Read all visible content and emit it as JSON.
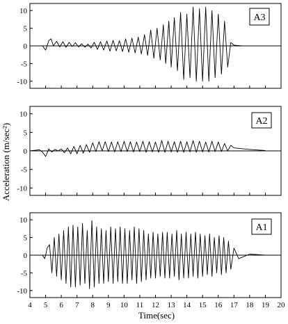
{
  "chart_data": [
    {
      "type": "line",
      "panel_label": "A3",
      "xlim": [
        4,
        20
      ],
      "ylim": [
        -12,
        12
      ],
      "x_ticks": [
        4,
        5,
        6,
        7,
        8,
        9,
        10,
        11,
        12,
        13,
        14,
        15,
        16,
        17,
        18,
        19,
        20
      ],
      "y_ticks": [
        10,
        5,
        0,
        -5,
        -10
      ],
      "series": [
        {
          "x": [
            4.0,
            4.8,
            5.0,
            5.2,
            5.35,
            5.5,
            5.7,
            5.9,
            6.1,
            6.3,
            6.5,
            6.7,
            6.9,
            7.1,
            7.3,
            7.5,
            7.7,
            7.9,
            8.1,
            8.3,
            8.5,
            8.7,
            8.9,
            9.1,
            9.3,
            9.5,
            9.7,
            9.9,
            10.1,
            10.3,
            10.5,
            10.7,
            10.9,
            11.1,
            11.3,
            11.5,
            11.7,
            11.9,
            12.1,
            12.3,
            12.5,
            12.65,
            12.85,
            13.0,
            13.2,
            13.4,
            13.6,
            13.8,
            14.0,
            14.2,
            14.4,
            14.6,
            14.8,
            15.0,
            15.2,
            15.4,
            15.6,
            15.8,
            16.0,
            16.2,
            16.4,
            16.6,
            16.8,
            17.0,
            17.5,
            18.0,
            19.0,
            20.0
          ],
          "values": [
            0,
            0,
            -1.2,
            1.5,
            2,
            0,
            1.3,
            -0.3,
            1.2,
            -0.4,
            1,
            -0.2,
            0.9,
            -0.3,
            0.6,
            -0.4,
            0.5,
            -0.6,
            1,
            -1,
            1.2,
            -1.2,
            1.4,
            -1.5,
            1.6,
            -1.4,
            1.5,
            -1.6,
            2,
            -1.8,
            2.2,
            -2,
            2.5,
            -2.3,
            3.2,
            -2.7,
            4.5,
            -3.5,
            5,
            -4,
            6,
            -5,
            7,
            -6,
            8,
            -7,
            9.5,
            -9.5,
            9,
            -9,
            11,
            -10,
            10.5,
            -10,
            11,
            -10,
            10,
            -9,
            9,
            -8,
            7,
            -6,
            1,
            0.2,
            0,
            0,
            0,
            0
          ]
        }
      ]
    },
    {
      "type": "line",
      "panel_label": "A2",
      "xlim": [
        4,
        20
      ],
      "ylim": [
        -12,
        12
      ],
      "x_ticks": [
        4,
        5,
        6,
        7,
        8,
        9,
        10,
        11,
        12,
        13,
        14,
        15,
        16,
        17,
        18,
        19,
        20
      ],
      "y_ticks": [
        10,
        5,
        0,
        -5,
        -10
      ],
      "series": [
        {
          "x": [
            4.0,
            4.6,
            4.8,
            5.0,
            5.2,
            5.4,
            5.6,
            5.8,
            6.0,
            6.2,
            6.4,
            6.6,
            6.8,
            7.0,
            7.2,
            7.4,
            7.6,
            7.8,
            8.0,
            8.2,
            8.4,
            8.6,
            8.8,
            9.0,
            9.2,
            9.4,
            9.6,
            9.8,
            10.0,
            10.2,
            10.4,
            10.6,
            10.8,
            11.0,
            11.2,
            11.4,
            11.6,
            11.8,
            12.0,
            12.2,
            12.4,
            12.6,
            12.8,
            13.0,
            13.2,
            13.4,
            13.6,
            13.8,
            14.0,
            14.2,
            14.4,
            14.6,
            14.8,
            15.0,
            15.2,
            15.4,
            15.6,
            15.8,
            16.0,
            16.2,
            16.4,
            16.6,
            16.8,
            17.0,
            17.5,
            18.0,
            19.0,
            20.0
          ],
          "values": [
            0,
            0.3,
            -0.3,
            -1.5,
            0.5,
            -0.3,
            0.4,
            0,
            0.5,
            -0.5,
            0.8,
            -0.8,
            1.2,
            -0.8,
            1.5,
            -0.6,
            1.7,
            -0.4,
            2.2,
            -0.2,
            2.5,
            0,
            2.5,
            -0.2,
            2.4,
            -0.3,
            2.5,
            -0.2,
            2.6,
            -0.2,
            2.5,
            -0.3,
            2.4,
            -0.2,
            2.6,
            -0.4,
            2.5,
            -0.3,
            2.4,
            -0.4,
            2.8,
            -0.4,
            2.6,
            -0.3,
            2.5,
            -0.4,
            2.6,
            -0.4,
            2.5,
            -0.3,
            2.8,
            -0.4,
            2.6,
            -0.3,
            2.4,
            -0.3,
            2.6,
            -0.2,
            2.4,
            -0.2,
            2,
            0,
            1.5,
            0.8,
            0.6,
            0.4,
            0.1,
            0
          ]
        }
      ]
    },
    {
      "type": "line",
      "panel_label": "A1",
      "xlim": [
        4,
        20
      ],
      "ylim": [
        -12,
        12
      ],
      "x_ticks": [
        4,
        5,
        6,
        7,
        8,
        9,
        10,
        11,
        12,
        13,
        14,
        15,
        16,
        17,
        18,
        19,
        20
      ],
      "y_ticks": [
        10,
        5,
        0,
        -5,
        -10
      ],
      "xlabel": "Time(sec)",
      "series": [
        {
          "x": [
            4.0,
            4.6,
            4.8,
            4.95,
            5.1,
            5.25,
            5.4,
            5.55,
            5.7,
            5.85,
            6.0,
            6.15,
            6.3,
            6.45,
            6.6,
            6.75,
            6.9,
            7.05,
            7.2,
            7.35,
            7.5,
            7.65,
            7.8,
            7.95,
            8.1,
            8.25,
            8.4,
            8.55,
            8.7,
            8.85,
            9.0,
            9.15,
            9.3,
            9.45,
            9.6,
            9.75,
            9.9,
            10.05,
            10.2,
            10.35,
            10.5,
            10.65,
            10.8,
            10.95,
            11.1,
            11.25,
            11.4,
            11.55,
            11.7,
            11.85,
            12.0,
            12.15,
            12.3,
            12.45,
            12.6,
            12.75,
            12.9,
            13.05,
            13.2,
            13.35,
            13.5,
            13.65,
            13.8,
            13.95,
            14.1,
            14.25,
            14.4,
            14.55,
            14.7,
            14.85,
            15.0,
            15.15,
            15.3,
            15.45,
            15.6,
            15.75,
            15.9,
            16.05,
            16.2,
            16.35,
            16.5,
            16.65,
            16.8,
            17.0,
            17.3,
            18.0,
            19.0,
            20.0
          ],
          "values": [
            0,
            0,
            0,
            -1,
            2,
            3,
            -5,
            5,
            -6,
            6,
            -7,
            7,
            -8,
            8,
            -9,
            8.5,
            -9,
            8,
            -8.5,
            9,
            -8,
            7,
            -9.5,
            9.8,
            -9,
            8,
            -8,
            7.5,
            -8,
            7,
            -7.5,
            8,
            -8,
            7.5,
            -7.5,
            8,
            -8,
            7.5,
            -8,
            7,
            -7,
            8,
            -8,
            7.5,
            -7.5,
            7,
            -7,
            6,
            -6.5,
            6.5,
            -6.5,
            6,
            -6,
            6.5,
            -6.5,
            6.5,
            -6.5,
            6,
            -6,
            7,
            -7,
            6,
            -6.5,
            6.5,
            -6.5,
            6,
            -6,
            6.5,
            -6.5,
            6,
            -6,
            5.5,
            -5.5,
            6,
            -6,
            5,
            -5,
            5.5,
            -5.5,
            5,
            -5,
            4,
            -4,
            2,
            -1,
            0.3,
            0,
            0
          ]
        }
      ]
    }
  ],
  "ylabel": "Acceleration (m/sec²)"
}
